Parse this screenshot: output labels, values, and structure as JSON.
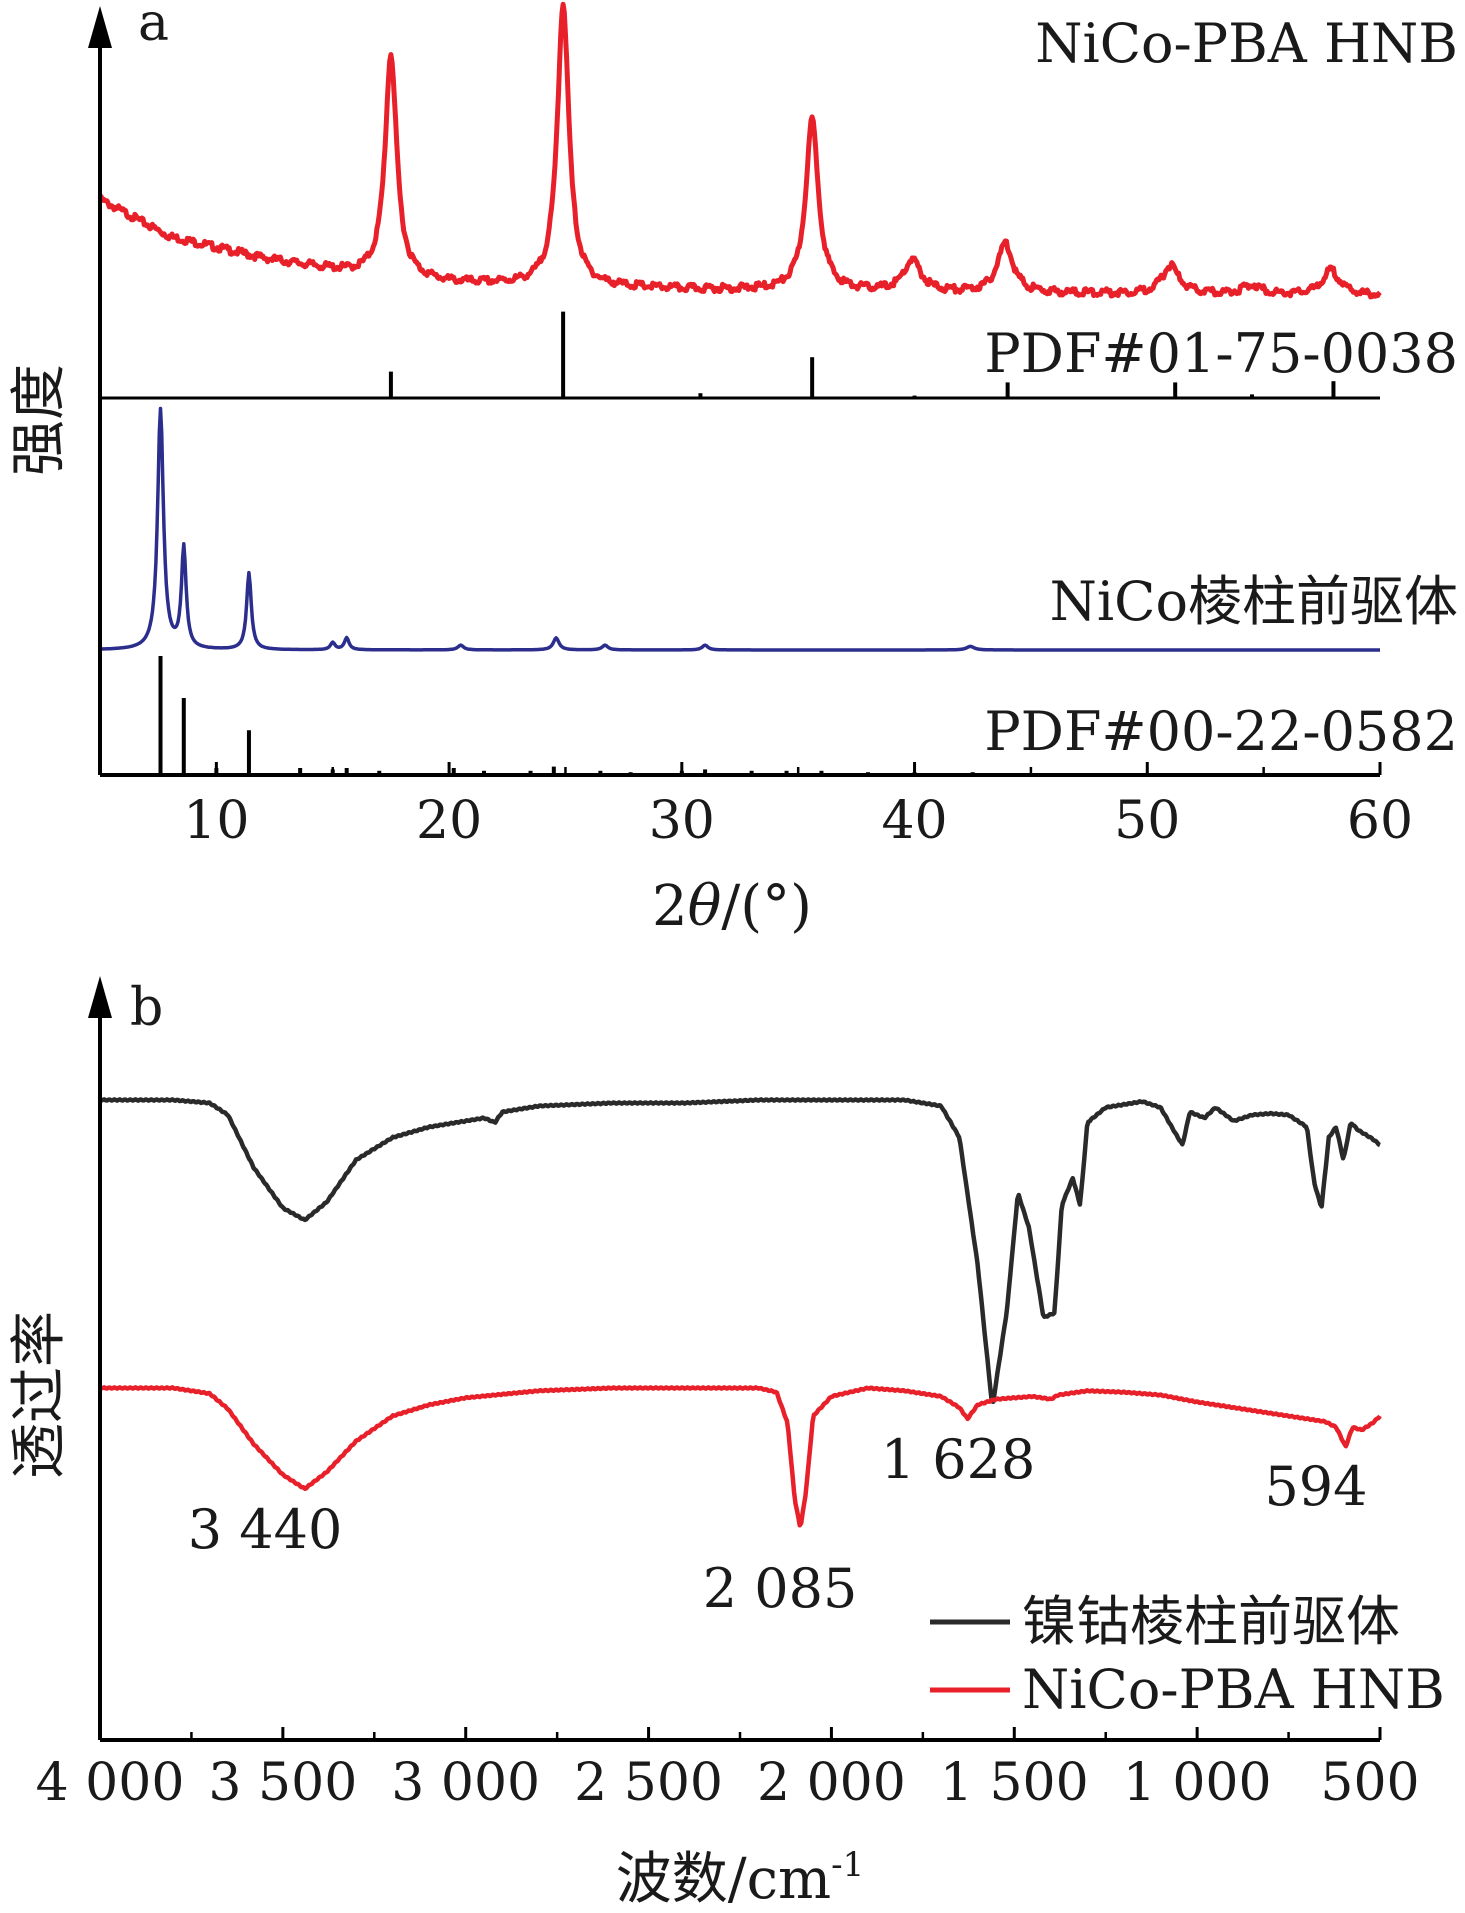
{
  "chart_data": [
    {
      "type": "line",
      "panel_label": "a",
      "xlabel_prefix": "2",
      "xlabel_var": "θ",
      "xlabel_suffix": "/(°)",
      "ylabel": "强度",
      "xlim": [
        5,
        60
      ],
      "xticks": [
        "10",
        "20",
        "30",
        "40",
        "50",
        "60"
      ],
      "series": [
        {
          "name": "NiCo-PBA HNB",
          "color": "#e8202a",
          "kind": "profile",
          "baseline": [
            [
              5,
              0.34
            ],
            [
              8,
              0.22
            ],
            [
              12,
              0.15
            ],
            [
              16,
              0.1
            ],
            [
              20,
              0.07
            ],
            [
              30,
              0.05
            ],
            [
              40,
              0.04
            ],
            [
              60,
              0.03
            ]
          ],
          "peaks": [
            [
              17.5,
              0.72,
              0.3
            ],
            [
              24.9,
              0.91,
              0.3
            ],
            [
              35.6,
              0.55,
              0.33
            ],
            [
              39.9,
              0.1,
              0.45
            ],
            [
              43.9,
              0.16,
              0.4
            ],
            [
              51.0,
              0.09,
              0.45
            ],
            [
              54.5,
              0.03,
              0.5
            ],
            [
              57.9,
              0.08,
              0.45
            ]
          ]
        },
        {
          "name": "PDF#01-75-0038",
          "color": "#000000",
          "kind": "sticks",
          "sticks": [
            [
              17.5,
              0.22
            ],
            [
              24.9,
              0.72
            ],
            [
              30.8,
              0.04
            ],
            [
              35.6,
              0.34
            ],
            [
              40.0,
              0.02
            ],
            [
              44.0,
              0.13
            ],
            [
              51.2,
              0.13
            ],
            [
              54.5,
              0.03
            ],
            [
              58.0,
              0.14
            ]
          ]
        },
        {
          "name": "NiCo棱柱前驱体",
          "color": "#2b2e8c",
          "kind": "profile",
          "baseline": [
            [
              5,
              0.0
            ],
            [
              60,
              0.0
            ]
          ],
          "peaks": [
            [
              7.6,
              1.0,
              0.15
            ],
            [
              8.6,
              0.42,
              0.12
            ],
            [
              11.4,
              0.32,
              0.12
            ],
            [
              15.0,
              0.03,
              0.12
            ],
            [
              15.6,
              0.05,
              0.12
            ],
            [
              20.5,
              0.02,
              0.15
            ],
            [
              24.6,
              0.05,
              0.15
            ],
            [
              26.7,
              0.02,
              0.15
            ],
            [
              31.0,
              0.02,
              0.15
            ],
            [
              42.4,
              0.015,
              0.2
            ]
          ]
        },
        {
          "name": "PDF#00-22-0582",
          "color": "#000000",
          "kind": "sticks",
          "sticks": [
            [
              7.6,
              0.85
            ],
            [
              8.6,
              0.55
            ],
            [
              10.0,
              0.05
            ],
            [
              11.4,
              0.32
            ],
            [
              13.6,
              0.05
            ],
            [
              15.0,
              0.04
            ],
            [
              15.6,
              0.05
            ],
            [
              17.0,
              0.03
            ],
            [
              20.2,
              0.05
            ],
            [
              21.5,
              0.03
            ],
            [
              23.5,
              0.03
            ],
            [
              24.5,
              0.06
            ],
            [
              26.5,
              0.03
            ],
            [
              27.8,
              0.02
            ],
            [
              30.0,
              0.03
            ],
            [
              31.0,
              0.04
            ],
            [
              33.0,
              0.03
            ],
            [
              34.5,
              0.03
            ],
            [
              36.0,
              0.03
            ],
            [
              38.0,
              0.02
            ],
            [
              40.0,
              0.02
            ],
            [
              42.5,
              0.02
            ]
          ]
        }
      ]
    },
    {
      "type": "line",
      "panel_label": "b",
      "xlabel": "波数/cm",
      "xlabel_sup": "-1",
      "ylabel": "透过率",
      "xlim": [
        4000,
        500
      ],
      "xticks": [
        4000,
        3500,
        3000,
        2500,
        2000,
        1500,
        1000,
        500
      ],
      "xtick_labels": [
        "4 000",
        "3 500",
        "3 000",
        "2 500",
        "2 000",
        "1 500",
        "1 000",
        "500"
      ],
      "legend": "bottom-right",
      "series": [
        {
          "name": "镍钴棱柱前驱体",
          "color": "#2a2a2a",
          "points": [
            [
              4000,
              0.0
            ],
            [
              3800,
              0.0
            ],
            [
              3700,
              0.02
            ],
            [
              3650,
              0.1
            ],
            [
              3580,
              0.45
            ],
            [
              3500,
              0.72
            ],
            [
              3440,
              0.8
            ],
            [
              3380,
              0.68
            ],
            [
              3300,
              0.4
            ],
            [
              3200,
              0.25
            ],
            [
              3100,
              0.18
            ],
            [
              3000,
              0.14
            ],
            [
              2950,
              0.12
            ],
            [
              2920,
              0.15
            ],
            [
              2900,
              0.08
            ],
            [
              2800,
              0.04
            ],
            [
              2600,
              0.02
            ],
            [
              2400,
              0.02
            ],
            [
              2200,
              0.0
            ],
            [
              2000,
              0.0
            ],
            [
              1800,
              0.0
            ],
            [
              1700,
              0.04
            ],
            [
              1650,
              0.25
            ],
            [
              1600,
              1.1
            ],
            [
              1560,
              2.05
            ],
            [
              1520,
              1.4
            ],
            [
              1490,
              0.62
            ],
            [
              1460,
              0.85
            ],
            [
              1420,
              1.45
            ],
            [
              1390,
              1.42
            ],
            [
              1370,
              0.7
            ],
            [
              1340,
              0.52
            ],
            [
              1320,
              0.7
            ],
            [
              1300,
              0.15
            ],
            [
              1250,
              0.05
            ],
            [
              1150,
              0.01
            ],
            [
              1100,
              0.05
            ],
            [
              1060,
              0.22
            ],
            [
              1040,
              0.3
            ],
            [
              1020,
              0.08
            ],
            [
              980,
              0.12
            ],
            [
              950,
              0.05
            ],
            [
              900,
              0.14
            ],
            [
              850,
              0.1
            ],
            [
              800,
              0.09
            ],
            [
              750,
              0.1
            ],
            [
              700,
              0.18
            ],
            [
              680,
              0.55
            ],
            [
              660,
              0.72
            ],
            [
              640,
              0.25
            ],
            [
              620,
              0.18
            ],
            [
              600,
              0.4
            ],
            [
              580,
              0.15
            ],
            [
              560,
              0.2
            ],
            [
              520,
              0.26
            ],
            [
              500,
              0.3
            ]
          ]
        },
        {
          "name": "NiCo-PBA HNB",
          "color": "#e8202a",
          "points": [
            [
              4000,
              0.0
            ],
            [
              3800,
              0.0
            ],
            [
              3700,
              0.04
            ],
            [
              3650,
              0.15
            ],
            [
              3580,
              0.4
            ],
            [
              3500,
              0.62
            ],
            [
              3440,
              0.72
            ],
            [
              3380,
              0.6
            ],
            [
              3300,
              0.38
            ],
            [
              3200,
              0.2
            ],
            [
              3100,
              0.12
            ],
            [
              3000,
              0.07
            ],
            [
              2800,
              0.02
            ],
            [
              2600,
              0.0
            ],
            [
              2400,
              0.0
            ],
            [
              2200,
              0.0
            ],
            [
              2150,
              0.03
            ],
            [
              2120,
              0.25
            ],
            [
              2100,
              0.8
            ],
            [
              2085,
              1.0
            ],
            [
              2070,
              0.75
            ],
            [
              2050,
              0.2
            ],
            [
              2000,
              0.06
            ],
            [
              1900,
              0.0
            ],
            [
              1800,
              0.02
            ],
            [
              1700,
              0.06
            ],
            [
              1650,
              0.14
            ],
            [
              1628,
              0.22
            ],
            [
              1600,
              0.12
            ],
            [
              1550,
              0.08
            ],
            [
              1450,
              0.06
            ],
            [
              1400,
              0.08
            ],
            [
              1380,
              0.05
            ],
            [
              1300,
              0.02
            ],
            [
              1200,
              0.03
            ],
            [
              1100,
              0.05
            ],
            [
              1000,
              0.1
            ],
            [
              900,
              0.14
            ],
            [
              800,
              0.18
            ],
            [
              700,
              0.22
            ],
            [
              650,
              0.24
            ],
            [
              620,
              0.28
            ],
            [
              594,
              0.42
            ],
            [
              575,
              0.28
            ],
            [
              550,
              0.3
            ],
            [
              520,
              0.25
            ],
            [
              500,
              0.2
            ]
          ]
        }
      ],
      "annotations": [
        "3 440",
        "2 085",
        "1 628",
        "594"
      ]
    }
  ]
}
